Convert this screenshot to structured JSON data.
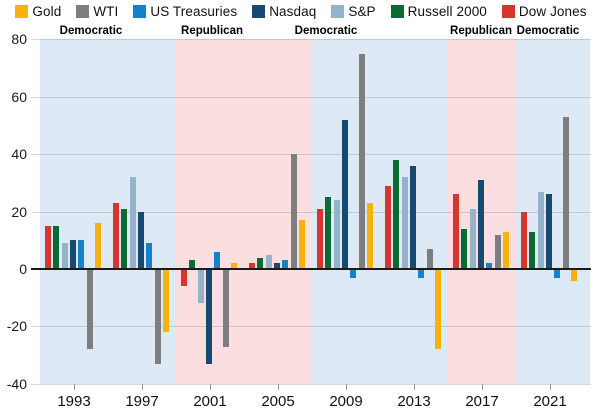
{
  "chart_data": {
    "type": "bar",
    "title": "",
    "xlabel": "",
    "ylabel": "",
    "ylim": [
      -40,
      80
    ],
    "yticks": [
      80,
      60,
      40,
      20,
      0,
      -20,
      -40
    ],
    "grid": true,
    "legend_position": "top",
    "legend": [
      {
        "name": "Gold",
        "color": "#F8B20E"
      },
      {
        "name": "WTI",
        "color": "#7E7E7E"
      },
      {
        "name": "US Treasuries",
        "color": "#1581CC"
      },
      {
        "name": "Nasdaq",
        "color": "#174A73"
      },
      {
        "name": "S&P",
        "color": "#93B3CA"
      },
      {
        "name": "Russell 2000",
        "color": "#0A6B32"
      },
      {
        "name": "Dow Jones",
        "color": "#D6362E"
      }
    ],
    "categories": [
      "1993",
      "1997",
      "2001",
      "2005",
      "2009",
      "2013",
      "2017",
      "2021"
    ],
    "bar_order": [
      "Dow Jones",
      "Russell 2000",
      "S&P",
      "Nasdaq",
      "US Treasuries",
      "WTI",
      "Gold"
    ],
    "series": [
      {
        "name": "Dow Jones",
        "values": [
          15,
          23,
          -6,
          2,
          21,
          29,
          26,
          20
        ]
      },
      {
        "name": "Russell 2000",
        "values": [
          15,
          21,
          3,
          4,
          25,
          38,
          14,
          13
        ]
      },
      {
        "name": "S&P",
        "values": [
          9,
          32,
          -12,
          5,
          24,
          32,
          21,
          27
        ]
      },
      {
        "name": "Nasdaq",
        "values": [
          10,
          20,
          -33,
          2,
          52,
          36,
          31,
          26
        ]
      },
      {
        "name": "US Treasuries",
        "values": [
          10,
          9,
          6,
          3,
          -3,
          -3,
          2,
          -3
        ]
      },
      {
        "name": "WTI",
        "values": [
          -28,
          -33,
          -27,
          40,
          75,
          7,
          12,
          53
        ]
      },
      {
        "name": "Gold",
        "values": [
          16,
          -22,
          2,
          17,
          23,
          -28,
          13,
          -4
        ]
      }
    ],
    "bands": [
      {
        "label": "Democratic",
        "party": "democratic",
        "from": 0,
        "to": 1
      },
      {
        "label": "Republican",
        "party": "republican",
        "from": 2,
        "to": 3
      },
      {
        "label": "Democratic",
        "party": "democratic",
        "from": 4,
        "to": 5
      },
      {
        "label": "Republican",
        "party": "republican",
        "from": 6,
        "to": 6
      },
      {
        "label": "Democratic",
        "party": "democratic",
        "from": 7,
        "to": 7
      }
    ],
    "colors": {
      "democratic_band": "#DDEAF5",
      "republican_band": "#FBDEDF",
      "gridline": "#DADADA",
      "zero_line": "#1A1A1A"
    }
  }
}
